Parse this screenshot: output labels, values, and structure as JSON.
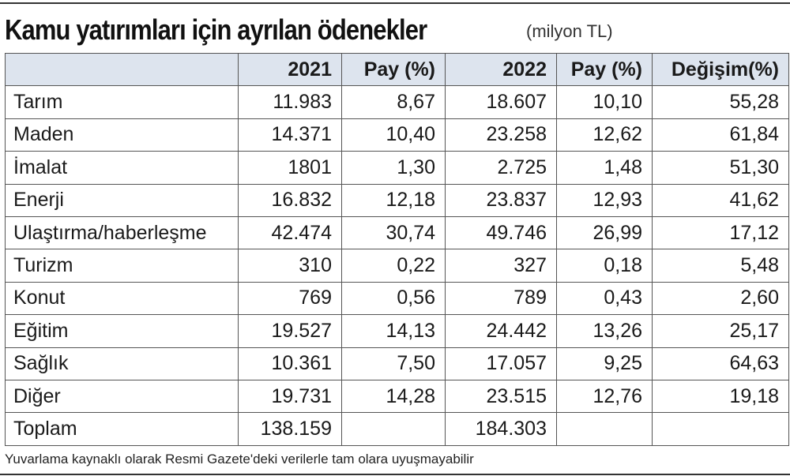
{
  "title": "Kamu yatırımları için ayrılan ödenekler",
  "unit": "(milyon TL)",
  "headers": [
    "",
    "2021",
    "Pay (%)",
    "2022",
    "Pay (%)",
    "Değişim(%)"
  ],
  "rows": [
    [
      "Tarım",
      "11.983",
      "8,67",
      "18.607",
      "10,10",
      "55,28"
    ],
    [
      "Maden",
      "14.371",
      "10,40",
      "23.258",
      "12,62",
      "61,84"
    ],
    [
      "İmalat",
      "1801",
      "1,30",
      "2.725",
      "1,48",
      "51,30"
    ],
    [
      "Enerji",
      "16.832",
      "12,18",
      "23.837",
      "12,93",
      "41,62"
    ],
    [
      "Ulaştırma/haberleşme",
      "42.474",
      "30,74",
      "49.746",
      "26,99",
      "17,12"
    ],
    [
      "Turizm",
      "310",
      "0,22",
      "327",
      "0,18",
      "5,48"
    ],
    [
      "Konut",
      "769",
      "0,56",
      "789",
      "0,43",
      "2,60"
    ],
    [
      "Eğitim",
      "19.527",
      "14,13",
      "24.442",
      "13,26",
      "25,17"
    ],
    [
      "Sağlık",
      "10.361",
      "7,50",
      "17.057",
      "9,25",
      "64,63"
    ],
    [
      "Diğer",
      "19.731",
      "14,28",
      "23.515",
      "12,76",
      "19,18"
    ],
    [
      "Toplam",
      "138.159",
      "",
      "184.303",
      "",
      ""
    ]
  ],
  "footnote": "Yuvarlama kaynaklı olarak Resmi Gazete'deki verilerle tam olara uyuşmayabilir"
}
